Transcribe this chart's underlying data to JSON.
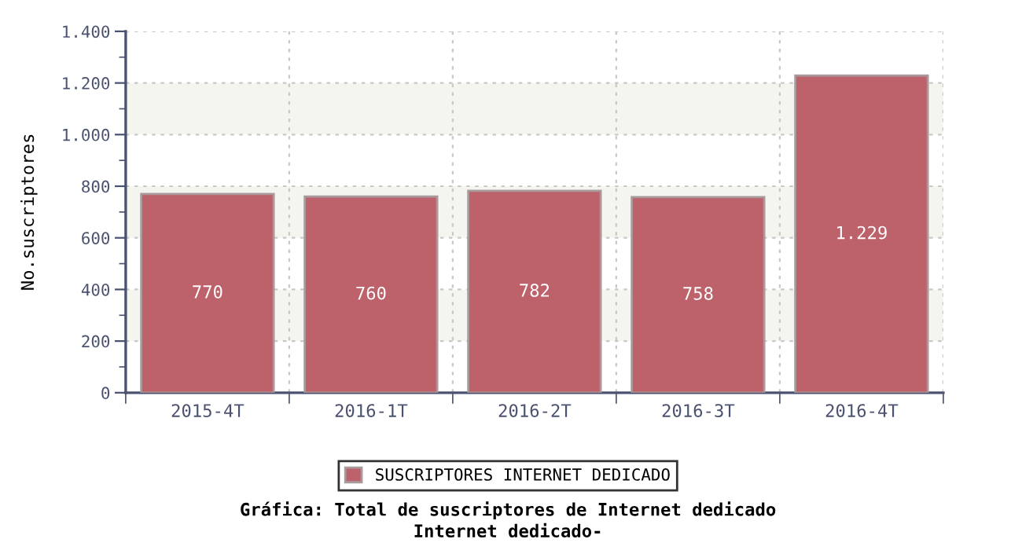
{
  "chart_data": {
    "type": "bar",
    "title": "Gráfica: Total de suscriptores de Internet dedicado",
    "subtitle": "Internet dedicado-",
    "ylabel": "No.suscriptores",
    "categories": [
      "2015-4T",
      "2016-1T",
      "2016-2T",
      "2016-3T",
      "2016-4T"
    ],
    "series": [
      {
        "name": "SUSCRIPTORES INTERNET DEDICADO",
        "color": "#bd616a",
        "values": [
          770,
          760,
          782,
          758,
          1229
        ],
        "value_labels": [
          "770",
          "760",
          "782",
          "758",
          "1.229"
        ]
      }
    ],
    "ylim": [
      0,
      1400
    ],
    "yticks": [
      0,
      200,
      400,
      600,
      800,
      {
        "value": 1000,
        "label": "1.000"
      },
      {
        "value": 1200,
        "label": "1.200"
      },
      {
        "value": 1400,
        "label": "1.400"
      }
    ],
    "bands": [
      {
        "axis": "y",
        "from": 200,
        "to": 400,
        "color": "#f5f5f0"
      },
      {
        "axis": "y",
        "from": 600,
        "to": 800,
        "color": "#f5f5f0"
      },
      {
        "axis": "y",
        "from": 1000,
        "to": 1200,
        "color": "#f5f5f0"
      }
    ],
    "grid": true,
    "legend": "bottom"
  }
}
